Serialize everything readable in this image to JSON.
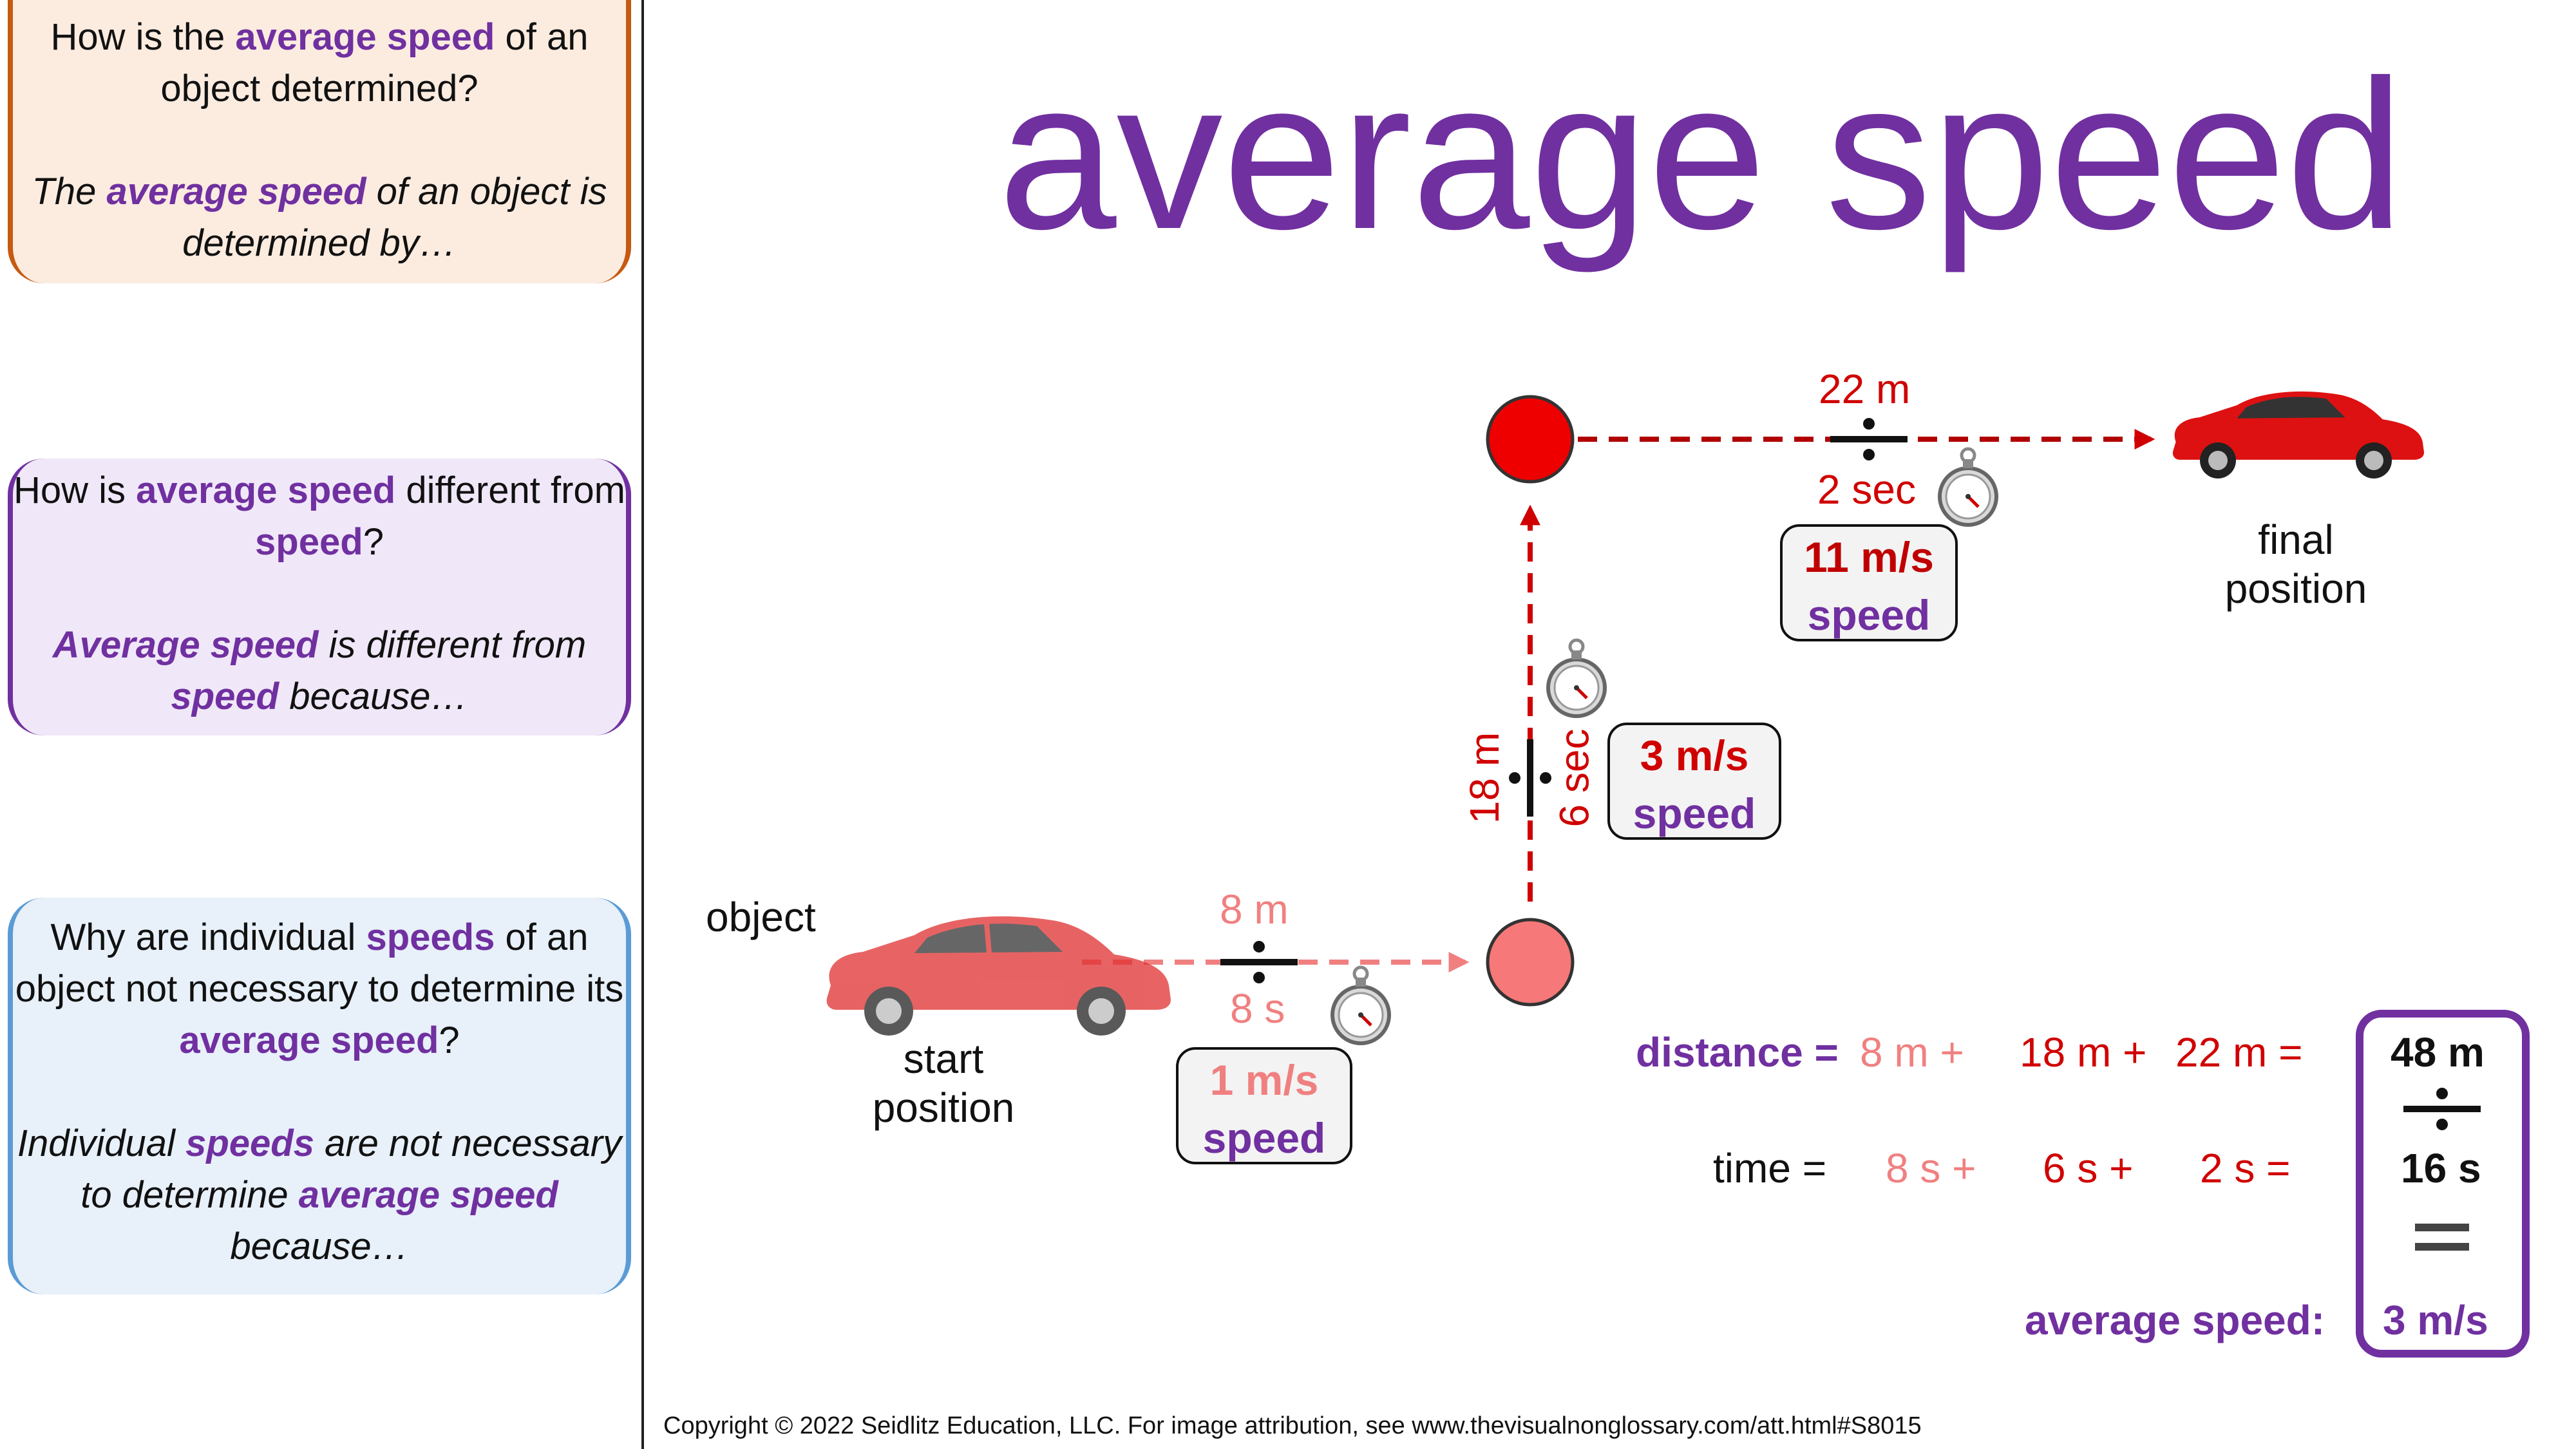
{
  "cards": [
    {
      "question": [
        {
          "t": "How is the ",
          "s": ""
        },
        {
          "t": "average speed",
          "s": "purple b"
        },
        {
          "t": " of an object determined?",
          "s": ""
        }
      ],
      "answer": [
        {
          "t": "The ",
          "s": "i"
        },
        {
          "t": "average speed",
          "s": "i purple b"
        },
        {
          "t": " of an object is determined by…",
          "s": "i"
        }
      ]
    },
    {
      "question": [
        {
          "t": "How is ",
          "s": ""
        },
        {
          "t": "average speed",
          "s": "purple b"
        },
        {
          "t": " different from ",
          "s": ""
        },
        {
          "t": "speed",
          "s": "purple b"
        },
        {
          "t": "?",
          "s": ""
        }
      ],
      "answer": [
        {
          "t": "Average speed",
          "s": "i purple b"
        },
        {
          "t": " is different from ",
          "s": "i"
        },
        {
          "t": "speed",
          "s": "i purple b"
        },
        {
          "t": " because…",
          "s": "i"
        }
      ]
    },
    {
      "question": [
        {
          "t": "Why are individual ",
          "s": ""
        },
        {
          "t": "speeds",
          "s": "purple b"
        },
        {
          "t": " of an object not necessary to determine its ",
          "s": ""
        },
        {
          "t": "average speed",
          "s": "purple b"
        },
        {
          "t": "?",
          "s": ""
        }
      ],
      "answer": [
        {
          "t": "Individual ",
          "s": "i"
        },
        {
          "t": "speeds",
          "s": "i purple b"
        },
        {
          "t": " are not necessary to determine ",
          "s": "i"
        },
        {
          "t": "average speed",
          "s": "i purple b"
        },
        {
          "t": " because…",
          "s": "i"
        }
      ]
    }
  ],
  "title": "average speed",
  "labels": {
    "object": "object",
    "start_line1": "start",
    "start_line2": "position",
    "final_line1": "final",
    "final_line2": "position"
  },
  "legs": [
    {
      "distance": "8 m",
      "time": "8 s",
      "speed_value": "1 m/s",
      "speed_word": "speed"
    },
    {
      "distance": "18 m",
      "time": "6 sec",
      "speed_value": "3 m/s",
      "speed_word": "speed"
    },
    {
      "distance": "22 m",
      "time": "2 sec",
      "speed_value": "11 m/s",
      "speed_word": "speed"
    }
  ],
  "equation": {
    "distance_label": "distance =",
    "distance_terms": [
      "8 m +",
      "18 m +",
      "22 m ="
    ],
    "time_label": "time =",
    "time_terms": [
      "8 s +",
      "6 s +",
      "2 s ="
    ],
    "total_distance": "48 m",
    "total_time": "16 s",
    "average_label": "average speed:",
    "average_value": "3 m/s"
  },
  "colors": {
    "purple": "#7030a0",
    "dark_red": "#d00000",
    "light_red": "#f08080",
    "orange": "#c55a11",
    "blue": "#5b9bd5"
  },
  "copyright": "Copyright © 2022 Seidlitz Education, LLC.  For image attribution, see www.thevisualnonglossary.com/att.html#S8015"
}
